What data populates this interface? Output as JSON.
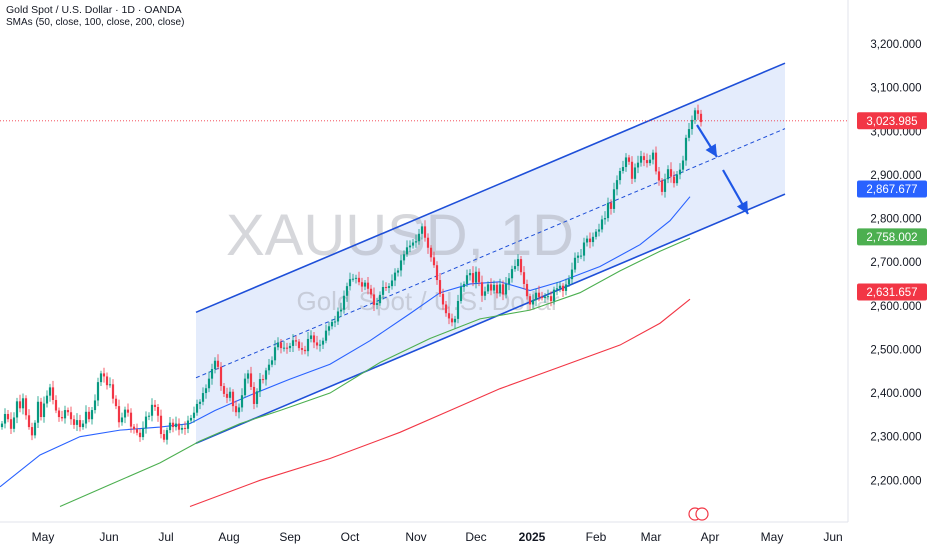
{
  "header": {
    "title": "Gold Spot / U.S. Dollar · 1D · OANDA",
    "indicators": "SMAs (50, close, 100, close, 200, close)"
  },
  "watermark": {
    "symbol": "XAUUSD, 1D",
    "name": "Gold Spot / U.S. Dollar"
  },
  "colors": {
    "up": "#089981",
    "down": "#f23645",
    "channel_line": "#1e4fd8",
    "channel_fill": "#dbe6fb",
    "sma50": "#2962ff",
    "sma100": "#4caf50",
    "sma200": "#f23645",
    "arrow": "#1e57e6",
    "price_line": "#f23645"
  },
  "chart_data": {
    "type": "candlestick",
    "x_axis": {
      "labels": [
        "May",
        "Jun",
        "Jul",
        "Aug",
        "Sep",
        "Oct",
        "Nov",
        "Dec",
        "2025",
        "Feb",
        "Mar",
        "Apr",
        "May",
        "Jun"
      ],
      "bold_label": "2025"
    },
    "y_axis": {
      "ticks": [
        "3,200.000",
        "3,100.000",
        "3,000.000",
        "2,900.000",
        "2,800.000",
        "2,700.000",
        "2,600.000",
        "2,500.000",
        "2,400.000",
        "2,300.000",
        "2,200.000"
      ],
      "ylim": [
        2140,
        3260
      ]
    },
    "last_price": 3023.985,
    "price_labels": [
      {
        "value": "3,023.985",
        "series": "last price"
      },
      {
        "value": "2,867.677",
        "series": "SMA 50"
      },
      {
        "value": "2,758.002",
        "series": "SMA 100"
      },
      {
        "value": "2,631.657",
        "series": "SMA 200"
      }
    ],
    "candles_close": [
      2330,
      2352,
      2340,
      2318,
      2344,
      2381,
      2365,
      2388,
      2349,
      2322,
      2303,
      2332,
      2380,
      2345,
      2376,
      2394,
      2413,
      2384,
      2360,
      2345,
      2342,
      2361,
      2356,
      2340,
      2327,
      2338,
      2322,
      2330,
      2357,
      2340,
      2361,
      2383,
      2425,
      2445,
      2438,
      2418,
      2420,
      2387,
      2370,
      2333,
      2344,
      2362,
      2355,
      2323,
      2317,
      2309,
      2299,
      2319,
      2346,
      2348,
      2373,
      2368,
      2348,
      2306,
      2293,
      2315,
      2332,
      2322,
      2330,
      2316,
      2320,
      2318,
      2337,
      2343,
      2355,
      2375,
      2380,
      2400,
      2411,
      2433,
      2455,
      2474,
      2460,
      2416,
      2398,
      2389,
      2403,
      2370,
      2356,
      2367,
      2395,
      2433,
      2445,
      2414,
      2375,
      2404,
      2432,
      2431,
      2452,
      2465,
      2475,
      2505,
      2516,
      2503,
      2504,
      2503,
      2508,
      2521,
      2518,
      2503,
      2499,
      2496,
      2524,
      2532,
      2516,
      2509,
      2511,
      2520,
      2543,
      2553,
      2563,
      2564,
      2587,
      2591,
      2623,
      2645,
      2661,
      2662,
      2664,
      2654,
      2644,
      2653,
      2639,
      2626,
      2602,
      2606,
      2625,
      2643,
      2641,
      2645,
      2658,
      2676,
      2681,
      2704,
      2718,
      2734,
      2738,
      2745,
      2748,
      2765,
      2782,
      2756,
      2733,
      2711,
      2693,
      2659,
      2627,
      2603,
      2583,
      2571,
      2562,
      2570,
      2611,
      2643,
      2650,
      2670,
      2675,
      2653,
      2678,
      2654,
      2623,
      2633,
      2649,
      2635,
      2648,
      2629,
      2649,
      2626,
      2650,
      2663,
      2684,
      2691,
      2707,
      2677,
      2650,
      2622,
      2603,
      2613,
      2630,
      2620,
      2618,
      2621,
      2622,
      2611,
      2637,
      2640,
      2646,
      2634,
      2649,
      2661,
      2683,
      2710,
      2715,
      2715,
      2745,
      2754,
      2746,
      2758,
      2770,
      2775,
      2798,
      2801,
      2836,
      2822,
      2867,
      2888,
      2909,
      2918,
      2940,
      2930,
      2891,
      2917,
      2928,
      2943,
      2934,
      2927,
      2935,
      2951,
      2908,
      2887,
      2861,
      2890,
      2913,
      2896,
      2881,
      2901,
      2912,
      2933,
      2985,
      3005,
      3026,
      3048,
      3040,
      3021
    ],
    "series": [
      {
        "name": "SMA 50"
      },
      {
        "name": "SMA 100"
      },
      {
        "name": "SMA 200"
      }
    ],
    "channel": {
      "upper": [
        [
          196,
          2585
        ],
        [
          785,
          3156
        ]
      ],
      "middle": [
        [
          196,
          2435
        ],
        [
          785,
          3006
        ]
      ],
      "lower": [
        [
          196,
          2285
        ],
        [
          785,
          2856
        ]
      ]
    },
    "grid": false,
    "legend": "none"
  }
}
